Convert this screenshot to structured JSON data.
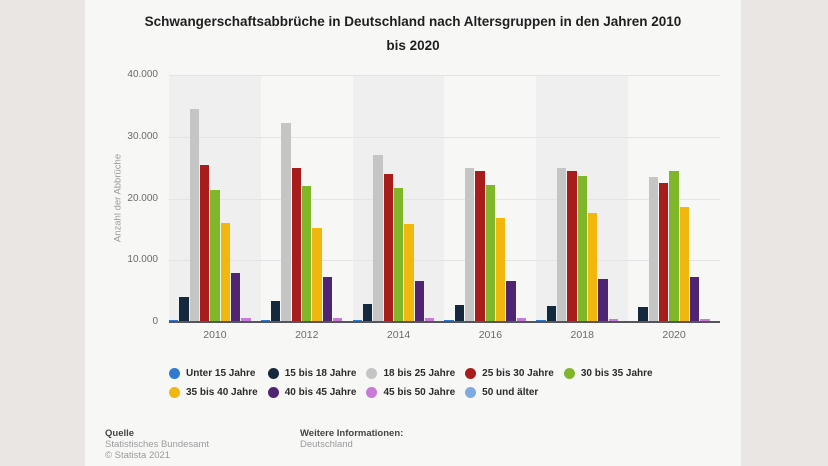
{
  "title": {
    "line1": "Schwangerschaftsabbrüche in Deutschland nach Altersgruppen in den Jahren 2010",
    "line2": "bis 2020"
  },
  "chart_data": {
    "type": "bar",
    "title": "Schwangerschaftsabbrüche in Deutschland nach Altersgruppen in den Jahren 2010 bis 2020",
    "xlabel": "",
    "ylabel": "Anzahl der Abbrüche",
    "ylim": [
      0,
      40000
    ],
    "y_ticks": [
      0,
      10000,
      20000,
      30000,
      40000
    ],
    "y_tick_labels": [
      "0",
      "10.000",
      "20.000",
      "30.000",
      "40.000"
    ],
    "grid": true,
    "legend_position": "bottom",
    "categories": [
      "2010",
      "2012",
      "2014",
      "2016",
      "2018",
      "2020"
    ],
    "series": [
      {
        "name": "Unter 15 Jahre",
        "color": "#3079d0",
        "values": [
          350,
          300,
          250,
          250,
          250,
          200
        ]
      },
      {
        "name": "15 bis 18 Jahre",
        "color": "#14293e",
        "values": [
          4000,
          3350,
          2950,
          2700,
          2600,
          2400
        ]
      },
      {
        "name": "18 bis 25 Jahre",
        "color": "#c6c5c5",
        "values": [
          34500,
          32300,
          27000,
          24900,
          24900,
          23500
        ]
      },
      {
        "name": "25 bis 30 Jahre",
        "color": "#a81c1c",
        "values": [
          25500,
          24900,
          23900,
          24400,
          24400,
          22500
        ]
      },
      {
        "name": "30 bis 35 Jahre",
        "color": "#80b62a",
        "values": [
          21300,
          22000,
          21700,
          22200,
          23700,
          24400
        ]
      },
      {
        "name": "35 bis 40 Jahre",
        "color": "#f1b70f",
        "values": [
          16000,
          15300,
          15800,
          16800,
          17600,
          18700
        ]
      },
      {
        "name": "40 bis 45 Jahre",
        "color": "#4f2472",
        "values": [
          7900,
          7300,
          6700,
          6600,
          6900,
          7300
        ]
      },
      {
        "name": "45 bis 50 Jahre",
        "color": "#c77ad6",
        "values": [
          700,
          700,
          600,
          600,
          550,
          500
        ]
      },
      {
        "name": "50 und älter",
        "color": "#7ea9e1",
        "values": [
          50,
          50,
          50,
          50,
          50,
          50
        ]
      }
    ]
  },
  "plot_style": {
    "band_color_dark": "#f0eff0",
    "band_color_light": "transparent",
    "gridline_color": "#e4e4e4",
    "axis_line_color": "#55555a"
  },
  "footer": {
    "source_label": "Quelle",
    "source_line1": "Statistisches Bundesamt",
    "source_line2": "© Statista 2021",
    "info_label": "Weitere Informationen:",
    "info_line1": "Deutschland"
  }
}
